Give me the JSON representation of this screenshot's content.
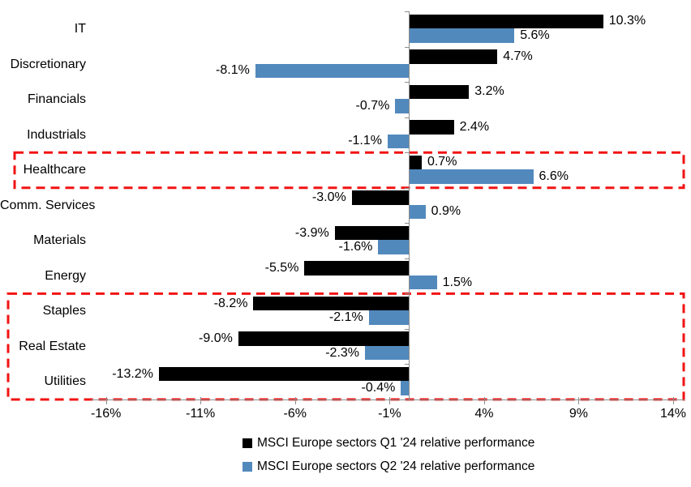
{
  "chart_data": {
    "type": "bar",
    "orientation": "horizontal",
    "title": "",
    "categories": [
      "IT",
      "Discretionary",
      "Financials",
      "Industrials",
      "Healthcare",
      "Comm. Services",
      "Materials",
      "Energy",
      "Staples",
      "Real Estate",
      "Utilities"
    ],
    "series": [
      {
        "name": "MSCI Europe sectors Q1 '24 relative performance",
        "color": "#000000",
        "values": [
          10.3,
          4.7,
          3.2,
          2.4,
          0.7,
          -3.0,
          -3.9,
          -5.5,
          -8.2,
          -9.0,
          -13.2
        ]
      },
      {
        "name": "MSCI Europe sectors Q2 '24 relative performance",
        "color": "#5289BD",
        "values": [
          5.6,
          -8.1,
          -0.7,
          -1.1,
          6.6,
          0.9,
          -1.6,
          1.5,
          -2.1,
          -2.3,
          -0.4
        ]
      }
    ],
    "value_label_suffix": "%",
    "x_ticks": [
      {
        "value": -16,
        "label": "-16%"
      },
      {
        "value": -11,
        "label": "-11%"
      },
      {
        "value": -6,
        "label": "-6%"
      },
      {
        "value": -1,
        "label": "-1%"
      },
      {
        "value": 4,
        "label": "4%"
      },
      {
        "value": 9,
        "label": "9%"
      },
      {
        "value": 14,
        "label": "14%"
      }
    ],
    "xlim": [
      -16.8,
      14.6
    ],
    "grid": false,
    "legend_position": "bottom",
    "axis_color": "#8C8C8C",
    "highlight_color": "#F21212",
    "highlights": [
      {
        "categories": [
          "Healthcare"
        ]
      },
      {
        "categories": [
          "Staples",
          "Real Estate",
          "Utilities"
        ]
      }
    ]
  }
}
